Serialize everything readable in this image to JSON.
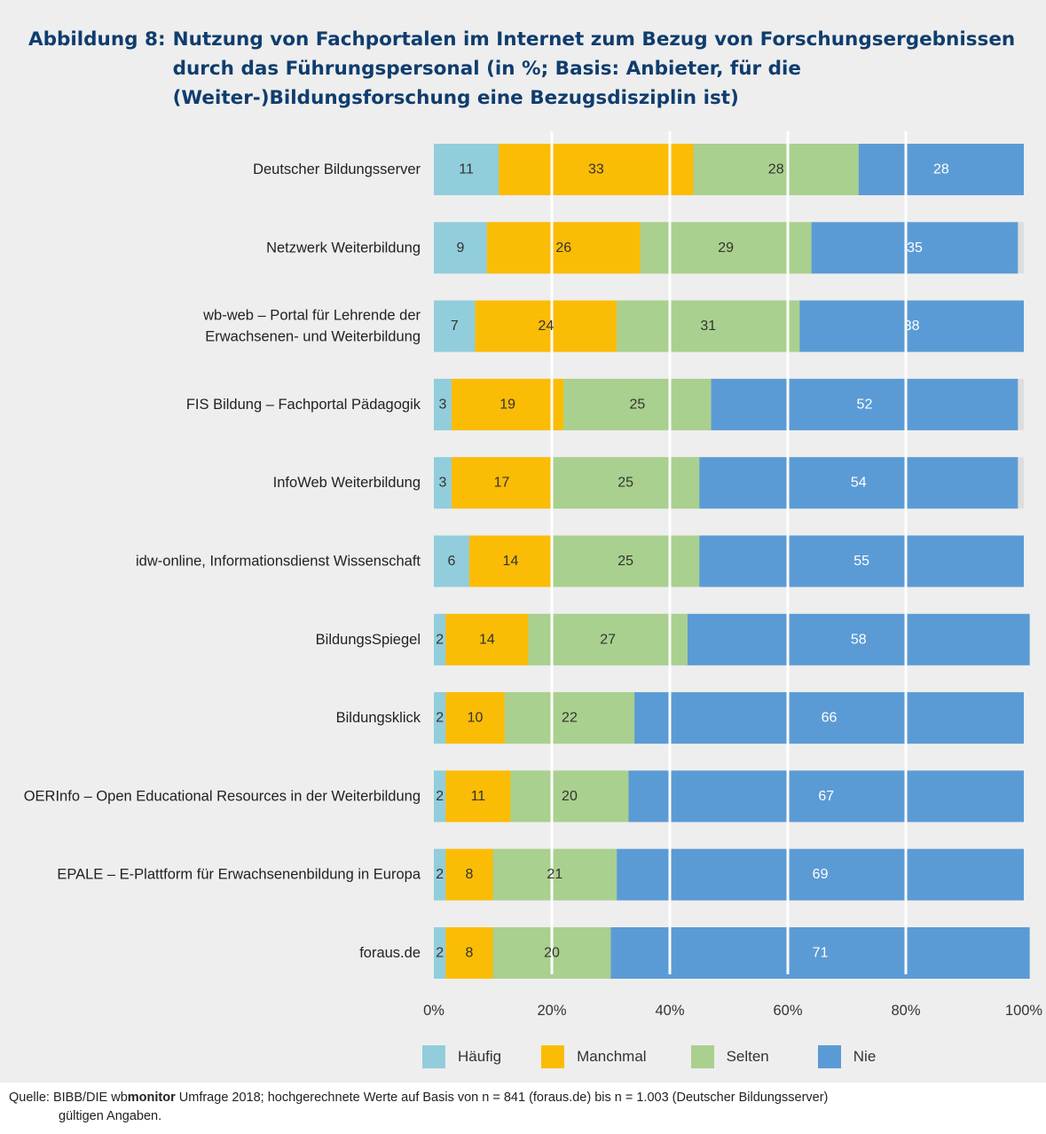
{
  "title": {
    "prefix": "Abbildung 8:",
    "text": "Nutzung von Fachportalen im Internet zum Bezug von Forschungsergebnissen durch das Führungspersonal (in %; Basis: Anbieter, für die (Weiter-)Bildungsforschung eine Bezugsdisziplin ist)"
  },
  "chart_data": {
    "type": "bar",
    "orientation": "horizontal",
    "stacked": true,
    "categories": [
      "Deutscher Bildungsserver",
      "Netzwerk Weiterbildung",
      "wb-web – Portal für Lehrende der Erwachsenen- und Weiterbildung",
      "FIS Bildung – Fachportal Pädagogik",
      "InfoWeb Weiterbildung",
      "idw-online, Informationsdienst Wissenschaft",
      "BildungsSpiegel",
      "Bildungsklick",
      "OERInfo – Open Educational Resources in der Weiterbildung",
      "EPALE – E-Plattform für Erwachsenenbildung in Europa",
      "foraus.de"
    ],
    "category_lines": [
      [
        "Deutscher Bildungsserver"
      ],
      [
        "Netzwerk Weiterbildung"
      ],
      [
        "wb-web – Portal für Lehrende der",
        "Erwachsenen- und Weiterbildung"
      ],
      [
        "FIS Bildung – Fachportal Pädagogik"
      ],
      [
        "InfoWeb Weiterbildung"
      ],
      [
        "idw-online, Informationsdienst Wissenschaft"
      ],
      [
        "BildungsSpiegel"
      ],
      [
        "Bildungsklick"
      ],
      [
        "OERInfo – Open Educational Resources in der Weiterbildung"
      ],
      [
        "EPALE – E-Plattform für Erwachsenenbildung in Europa"
      ],
      [
        "foraus.de"
      ]
    ],
    "series": [
      {
        "name": "Häufig",
        "color": "#92cddc",
        "label_color": "#333333",
        "values": [
          11,
          9,
          7,
          3,
          3,
          6,
          2,
          2,
          2,
          2,
          2
        ]
      },
      {
        "name": "Manchmal",
        "color": "#fbbc05",
        "label_color": "#333333",
        "values": [
          33,
          26,
          24,
          19,
          17,
          14,
          14,
          10,
          11,
          8,
          8
        ]
      },
      {
        "name": "Selten",
        "color": "#a9d08e",
        "label_color": "#333333",
        "values": [
          28,
          29,
          31,
          25,
          25,
          25,
          27,
          22,
          20,
          21,
          20
        ]
      },
      {
        "name": "Nie",
        "color": "#5b9bd5",
        "label_color": "#ffffff",
        "values": [
          28,
          35,
          38,
          52,
          54,
          55,
          58,
          66,
          67,
          69,
          71
        ]
      }
    ],
    "xlim": [
      0,
      100
    ],
    "xticks": [
      "0%",
      "20%",
      "40%",
      "60%",
      "80%",
      "100%"
    ],
    "grid": true,
    "legend_position": "bottom"
  },
  "source": {
    "prefix": "Quelle: BIBB/DIE wb",
    "bold": "monitor",
    "rest": " Umfrage 2018; hochgerechnete Werte auf Basis von n = 841 (foraus.de) bis n = 1.003 (Deutscher Bildungsserver)",
    "line2": "gültigen Angaben."
  }
}
